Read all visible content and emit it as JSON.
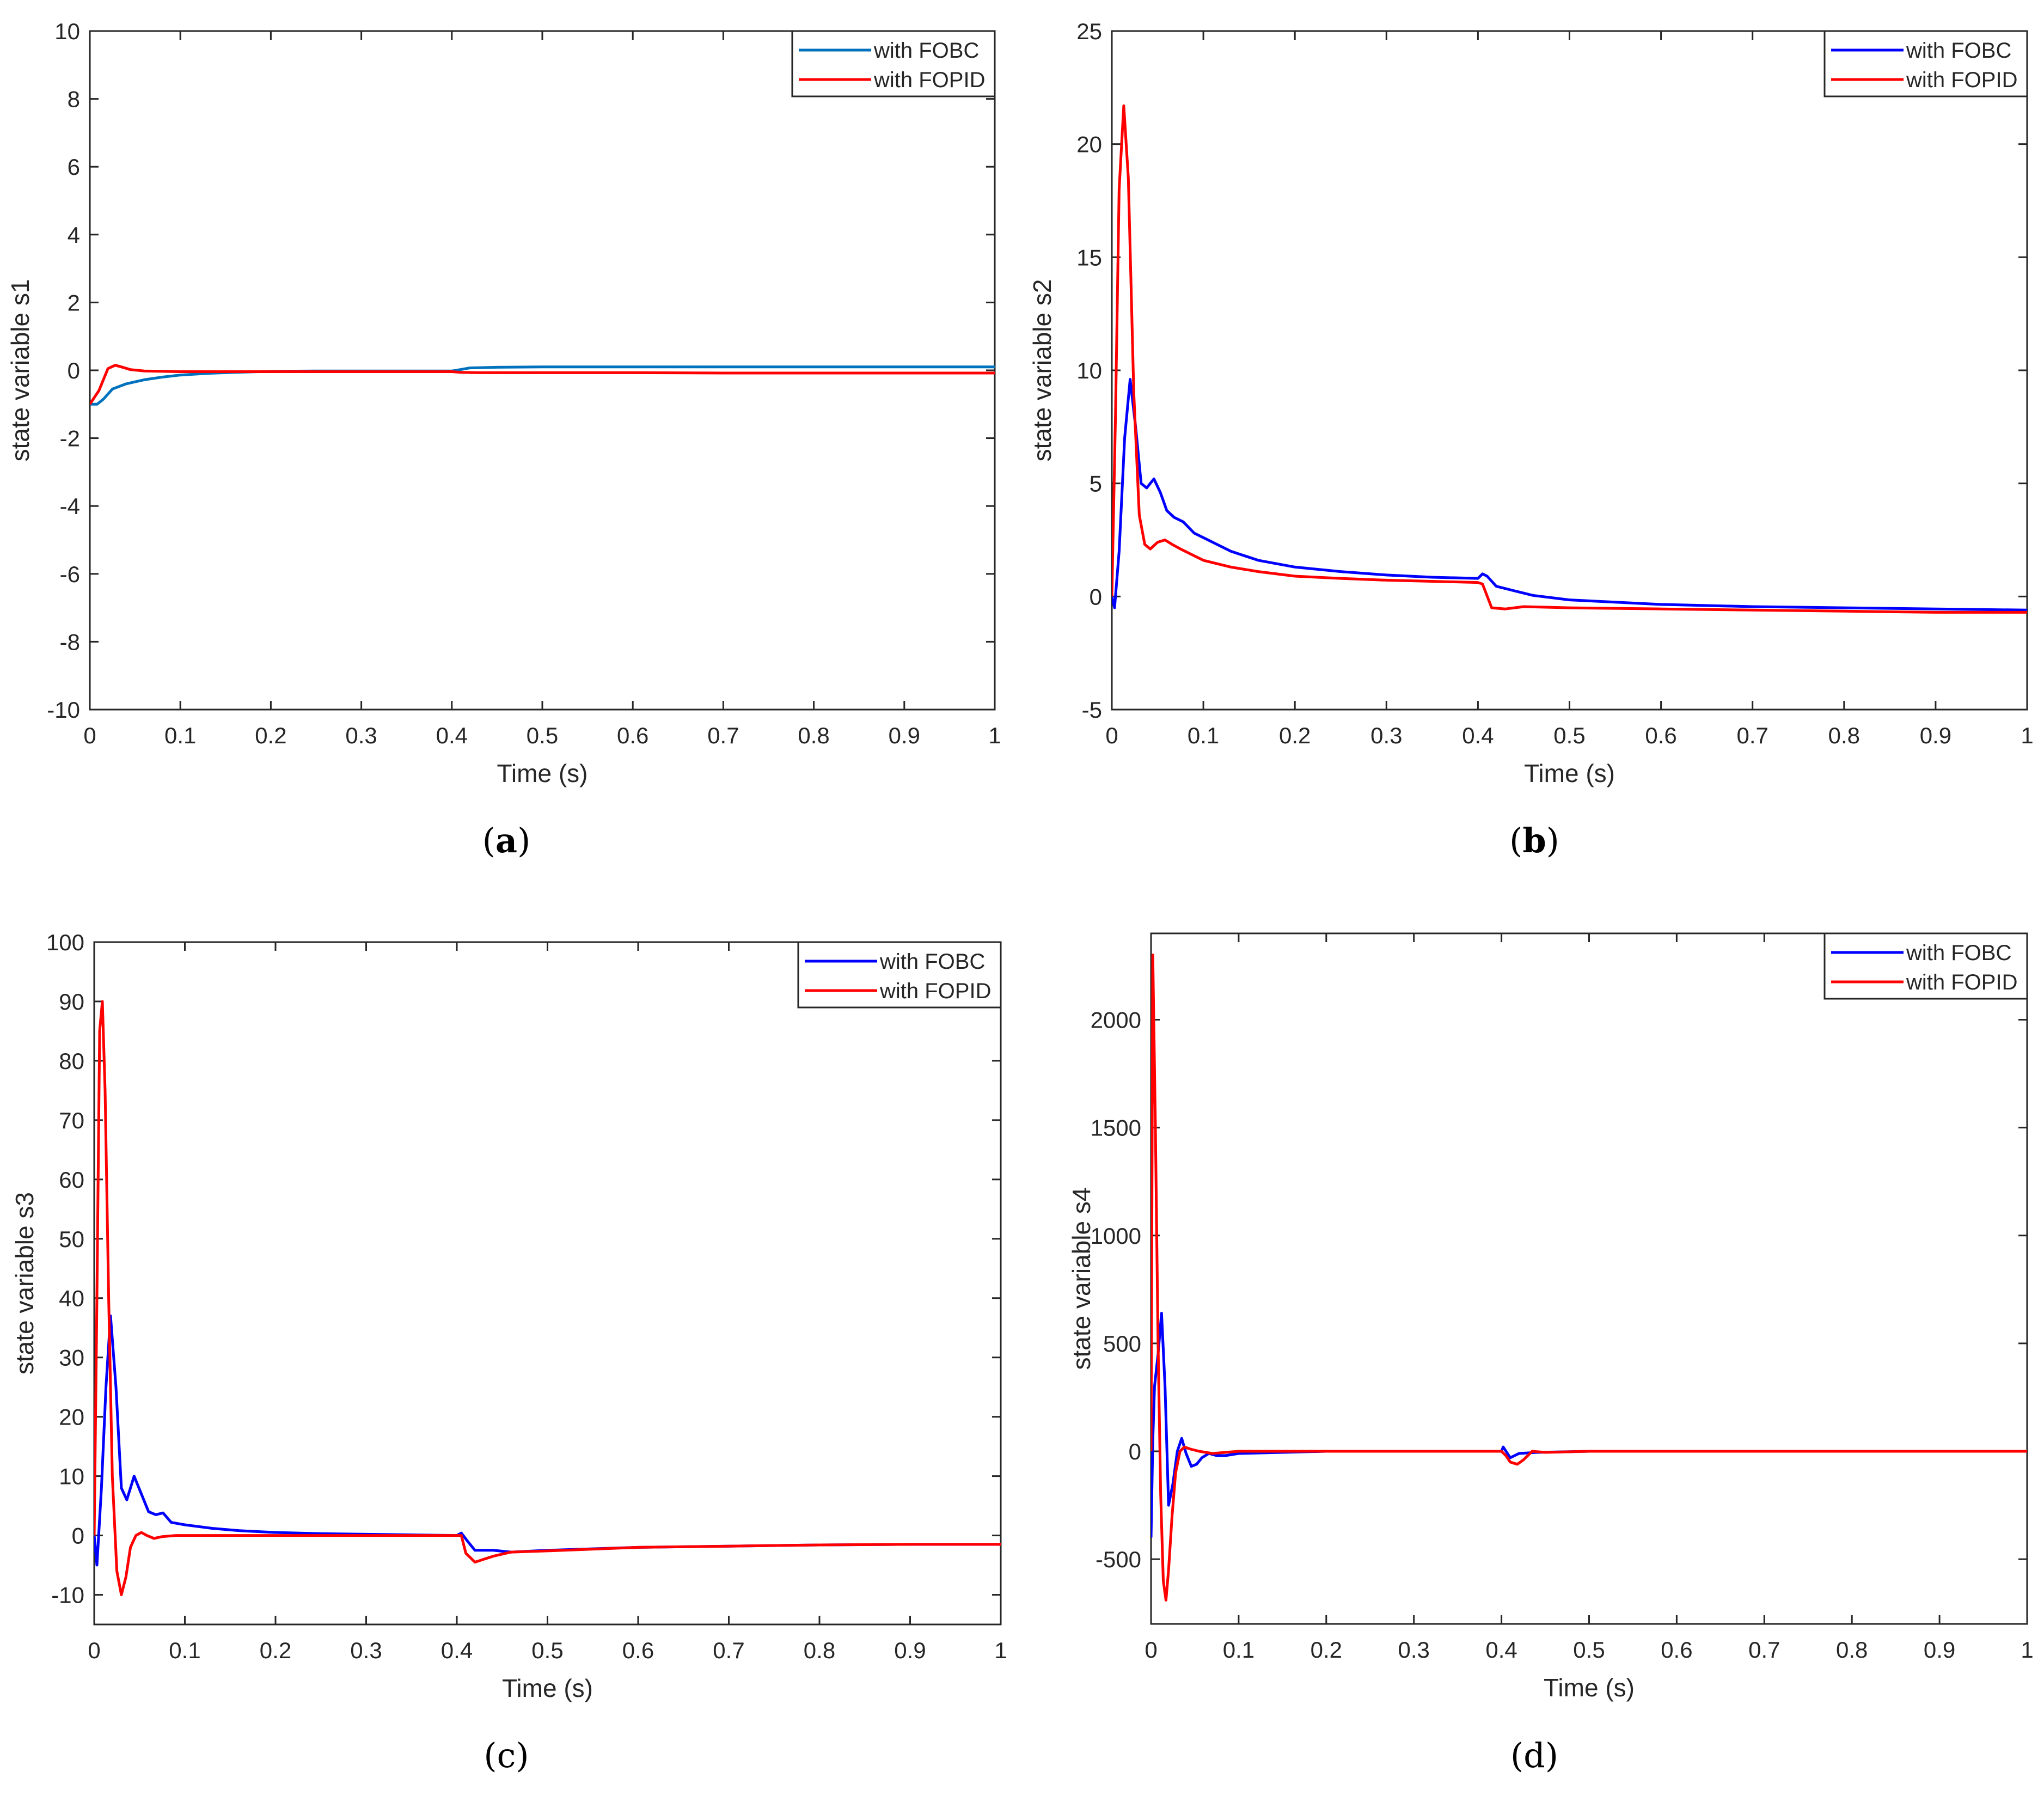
{
  "figure": {
    "colors": {
      "fobc_blue": "#0000ff",
      "fobc_s1": "#0072bd",
      "fopid_red": "#ff0000",
      "axis": "#262626",
      "frame": "#000000"
    }
  },
  "chart_data": [
    {
      "id": "a",
      "type": "line",
      "caption_label": "a",
      "xlabel": "Time (s)",
      "ylabel": "state variable s1",
      "xlim": [
        0,
        1
      ],
      "ylim": [
        -10,
        10
      ],
      "xticks": [
        0,
        0.1,
        0.2,
        0.3,
        0.4,
        0.5,
        0.6,
        0.7,
        0.8,
        0.9,
        1
      ],
      "xtick_labels": [
        "0",
        "0.1",
        "0.2",
        "0.3",
        "0.4",
        "0.5",
        "0.6",
        "0.7",
        "0.8",
        "0.9",
        "1"
      ],
      "yticks": [
        -10,
        -8,
        -6,
        -4,
        -2,
        0,
        2,
        4,
        6,
        8,
        10
      ],
      "ytick_labels": [
        "-10",
        "-8",
        "-6",
        "-4",
        "-2",
        "0",
        "2",
        "4",
        "6",
        "8",
        "10"
      ],
      "legend_position": "top-right",
      "series": [
        {
          "name": "with FOBC",
          "color": "#0072bd",
          "x": [
            0,
            0.008,
            0.015,
            0.025,
            0.04,
            0.06,
            0.08,
            0.1,
            0.13,
            0.16,
            0.2,
            0.25,
            0.3,
            0.35,
            0.4,
            0.405,
            0.42,
            0.45,
            0.5,
            0.6,
            0.7,
            0.8,
            0.9,
            1.0
          ],
          "y": [
            -1.0,
            -1.0,
            -0.85,
            -0.55,
            -0.4,
            -0.28,
            -0.2,
            -0.14,
            -0.09,
            -0.06,
            -0.03,
            -0.02,
            -0.02,
            -0.02,
            -0.02,
            0.0,
            0.07,
            0.09,
            0.1,
            0.1,
            0.1,
            0.1,
            0.1,
            0.1
          ]
        },
        {
          "name": "with FOPID",
          "color": "#ff0000",
          "x": [
            0,
            0.01,
            0.02,
            0.028,
            0.035,
            0.045,
            0.06,
            0.08,
            0.1,
            0.15,
            0.2,
            0.3,
            0.4,
            0.41,
            0.43,
            0.5,
            0.6,
            0.7,
            0.8,
            0.9,
            1.0
          ],
          "y": [
            -1.0,
            -0.6,
            0.05,
            0.15,
            0.1,
            0.02,
            -0.02,
            -0.03,
            -0.04,
            -0.04,
            -0.04,
            -0.04,
            -0.04,
            -0.06,
            -0.07,
            -0.07,
            -0.07,
            -0.08,
            -0.08,
            -0.08,
            -0.08
          ]
        }
      ]
    },
    {
      "id": "b",
      "type": "line",
      "caption_label": "b",
      "xlabel": "Time (s)",
      "ylabel": "state variable s2",
      "xlim": [
        0,
        1
      ],
      "ylim": [
        -5,
        25
      ],
      "xticks": [
        0,
        0.1,
        0.2,
        0.3,
        0.4,
        0.5,
        0.6,
        0.7,
        0.8,
        0.9,
        1
      ],
      "xtick_labels": [
        "0",
        "0.1",
        "0.2",
        "0.3",
        "0.4",
        "0.5",
        "0.6",
        "0.7",
        "0.8",
        "0.9",
        "1"
      ],
      "yticks": [
        -5,
        0,
        5,
        10,
        15,
        20,
        25
      ],
      "ytick_labels": [
        "-5",
        "0",
        "5",
        "10",
        "15",
        "20",
        "25"
      ],
      "legend_position": "top-right",
      "series": [
        {
          "name": "with FOBC",
          "color": "#0000ff",
          "x": [
            0,
            0.003,
            0.008,
            0.014,
            0.02,
            0.026,
            0.032,
            0.038,
            0.046,
            0.053,
            0.06,
            0.068,
            0.078,
            0.09,
            0.1,
            0.13,
            0.16,
            0.2,
            0.25,
            0.3,
            0.35,
            0.4,
            0.405,
            0.41,
            0.42,
            0.44,
            0.46,
            0.5,
            0.6,
            0.7,
            0.8,
            0.9,
            1.0
          ],
          "y": [
            0,
            -0.5,
            2,
            7,
            9.6,
            7.5,
            5.0,
            4.8,
            5.2,
            4.6,
            3.8,
            3.5,
            3.3,
            2.8,
            2.6,
            2.0,
            1.6,
            1.3,
            1.1,
            0.95,
            0.85,
            0.8,
            1.0,
            0.9,
            0.45,
            0.25,
            0.05,
            -0.15,
            -0.35,
            -0.45,
            -0.5,
            -0.55,
            -0.6
          ]
        },
        {
          "name": "with FOPID",
          "color": "#ff0000",
          "x": [
            0,
            0.004,
            0.008,
            0.013,
            0.018,
            0.024,
            0.03,
            0.036,
            0.042,
            0.05,
            0.058,
            0.066,
            0.075,
            0.09,
            0.1,
            0.13,
            0.16,
            0.2,
            0.25,
            0.3,
            0.35,
            0.4,
            0.405,
            0.415,
            0.43,
            0.45,
            0.5,
            0.6,
            0.7,
            0.8,
            0.9,
            1.0
          ],
          "y": [
            0,
            8,
            18,
            21.7,
            18.5,
            9,
            3.6,
            2.3,
            2.1,
            2.4,
            2.5,
            2.3,
            2.1,
            1.8,
            1.6,
            1.3,
            1.1,
            0.9,
            0.8,
            0.72,
            0.67,
            0.62,
            0.55,
            -0.5,
            -0.55,
            -0.45,
            -0.5,
            -0.55,
            -0.6,
            -0.65,
            -0.7,
            -0.7
          ]
        }
      ]
    },
    {
      "id": "c",
      "type": "line",
      "caption_label": "c",
      "xlabel": "Time (s)",
      "ylabel": "state variable s3",
      "xlim": [
        0,
        1
      ],
      "ylim": [
        -15,
        100
      ],
      "xticks": [
        0,
        0.1,
        0.2,
        0.3,
        0.4,
        0.5,
        0.6,
        0.7,
        0.8,
        0.9,
        1
      ],
      "xtick_labels": [
        "0",
        "0.1",
        "0.2",
        "0.3",
        "0.4",
        "0.5",
        "0.6",
        "0.7",
        "0.8",
        "0.9",
        "1"
      ],
      "yticks": [
        -10,
        0,
        10,
        20,
        30,
        40,
        50,
        60,
        70,
        80,
        90,
        100
      ],
      "ytick_labels": [
        "-10",
        "0",
        "10",
        "20",
        "30",
        "40",
        "50",
        "60",
        "70",
        "80",
        "90",
        "100"
      ],
      "legend_position": "top-right",
      "series": [
        {
          "name": "with FOBC",
          "color": "#0000ff",
          "x": [
            0,
            0.003,
            0.008,
            0.013,
            0.018,
            0.024,
            0.03,
            0.036,
            0.044,
            0.052,
            0.06,
            0.068,
            0.076,
            0.085,
            0.1,
            0.13,
            0.16,
            0.2,
            0.25,
            0.3,
            0.35,
            0.4,
            0.405,
            0.412,
            0.42,
            0.44,
            0.46,
            0.5,
            0.6,
            0.7,
            0.8,
            0.9,
            1.0
          ],
          "y": [
            0,
            -5,
            8,
            25,
            37,
            25,
            8,
            6,
            10,
            7,
            4,
            3.5,
            3.8,
            2.2,
            1.8,
            1.2,
            0.8,
            0.5,
            0.3,
            0.2,
            0.1,
            0.0,
            0.4,
            -1,
            -2.5,
            -2.5,
            -2.8,
            -2.5,
            -2.0,
            -1.8,
            -1.6,
            -1.5,
            -1.5
          ]
        },
        {
          "name": "with FOPID",
          "color": "#ff0000",
          "x": [
            0,
            0.003,
            0.006,
            0.009,
            0.012,
            0.016,
            0.02,
            0.025,
            0.03,
            0.035,
            0.04,
            0.046,
            0.052,
            0.058,
            0.066,
            0.075,
            0.09,
            0.1,
            0.15,
            0.2,
            0.3,
            0.4,
            0.405,
            0.41,
            0.42,
            0.44,
            0.46,
            0.5,
            0.6,
            0.7,
            0.8,
            0.9,
            1.0
          ],
          "y": [
            0,
            40,
            85,
            90,
            75,
            40,
            10,
            -6,
            -10,
            -7,
            -2,
            0,
            0.5,
            0,
            -0.5,
            -0.2,
            0,
            0,
            0,
            0,
            0,
            0,
            0,
            -3,
            -4.5,
            -3.5,
            -2.8,
            -2.6,
            -2.0,
            -1.8,
            -1.6,
            -1.5,
            -1.5
          ]
        }
      ]
    },
    {
      "id": "d",
      "type": "line",
      "caption_label": "d",
      "xlabel": "Time (s)",
      "ylabel": "state variable s4",
      "xlim": [
        0,
        1
      ],
      "ylim": [
        -800,
        2400
      ],
      "xticks": [
        0,
        0.1,
        0.2,
        0.3,
        0.4,
        0.5,
        0.6,
        0.7,
        0.8,
        0.9,
        1
      ],
      "xtick_labels": [
        "0",
        "0.1",
        "0.2",
        "0.3",
        "0.4",
        "0.5",
        "0.6",
        "0.7",
        "0.8",
        "0.9",
        "1"
      ],
      "yticks": [
        -500,
        0,
        500,
        1000,
        1500,
        2000
      ],
      "ytick_labels": [
        "-500",
        "0",
        "500",
        "1000",
        "1500",
        "2000"
      ],
      "legend_position": "top-right",
      "series": [
        {
          "name": "with FOBC",
          "color": "#0000ff",
          "x": [
            0,
            0.002,
            0.004,
            0.008,
            0.012,
            0.016,
            0.02,
            0.025,
            0.03,
            0.035,
            0.04,
            0.046,
            0.052,
            0.058,
            0.066,
            0.075,
            0.085,
            0.1,
            0.15,
            0.2,
            0.3,
            0.4,
            0.402,
            0.41,
            0.42,
            0.44,
            0.5,
            0.6,
            0.7,
            0.8,
            0.9,
            1.0
          ],
          "y": [
            -400,
            50,
            300,
            450,
            640,
            300,
            -250,
            -150,
            0,
            60,
            -10,
            -70,
            -60,
            -30,
            -10,
            -20,
            -20,
            -10,
            -5,
            0,
            0,
            0,
            20,
            -30,
            -10,
            -5,
            0,
            0,
            0,
            0,
            0,
            0
          ]
        },
        {
          "name": "with FOPID",
          "color": "#ff0000",
          "x": [
            0,
            0.002,
            0.005,
            0.008,
            0.011,
            0.014,
            0.017,
            0.02,
            0.024,
            0.028,
            0.033,
            0.038,
            0.045,
            0.055,
            0.07,
            0.1,
            0.15,
            0.2,
            0.3,
            0.4,
            0.405,
            0.41,
            0.418,
            0.425,
            0.435,
            0.45,
            0.5,
            0.6,
            0.7,
            0.8,
            0.9,
            1.0
          ],
          "y": [
            0,
            2300,
            1500,
            500,
            -200,
            -600,
            -690,
            -550,
            -300,
            -100,
            0,
            20,
            10,
            0,
            -10,
            0,
            0,
            0,
            0,
            0,
            -20,
            -50,
            -60,
            -40,
            0,
            -5,
            0,
            0,
            0,
            0,
            0,
            0
          ]
        }
      ]
    }
  ]
}
